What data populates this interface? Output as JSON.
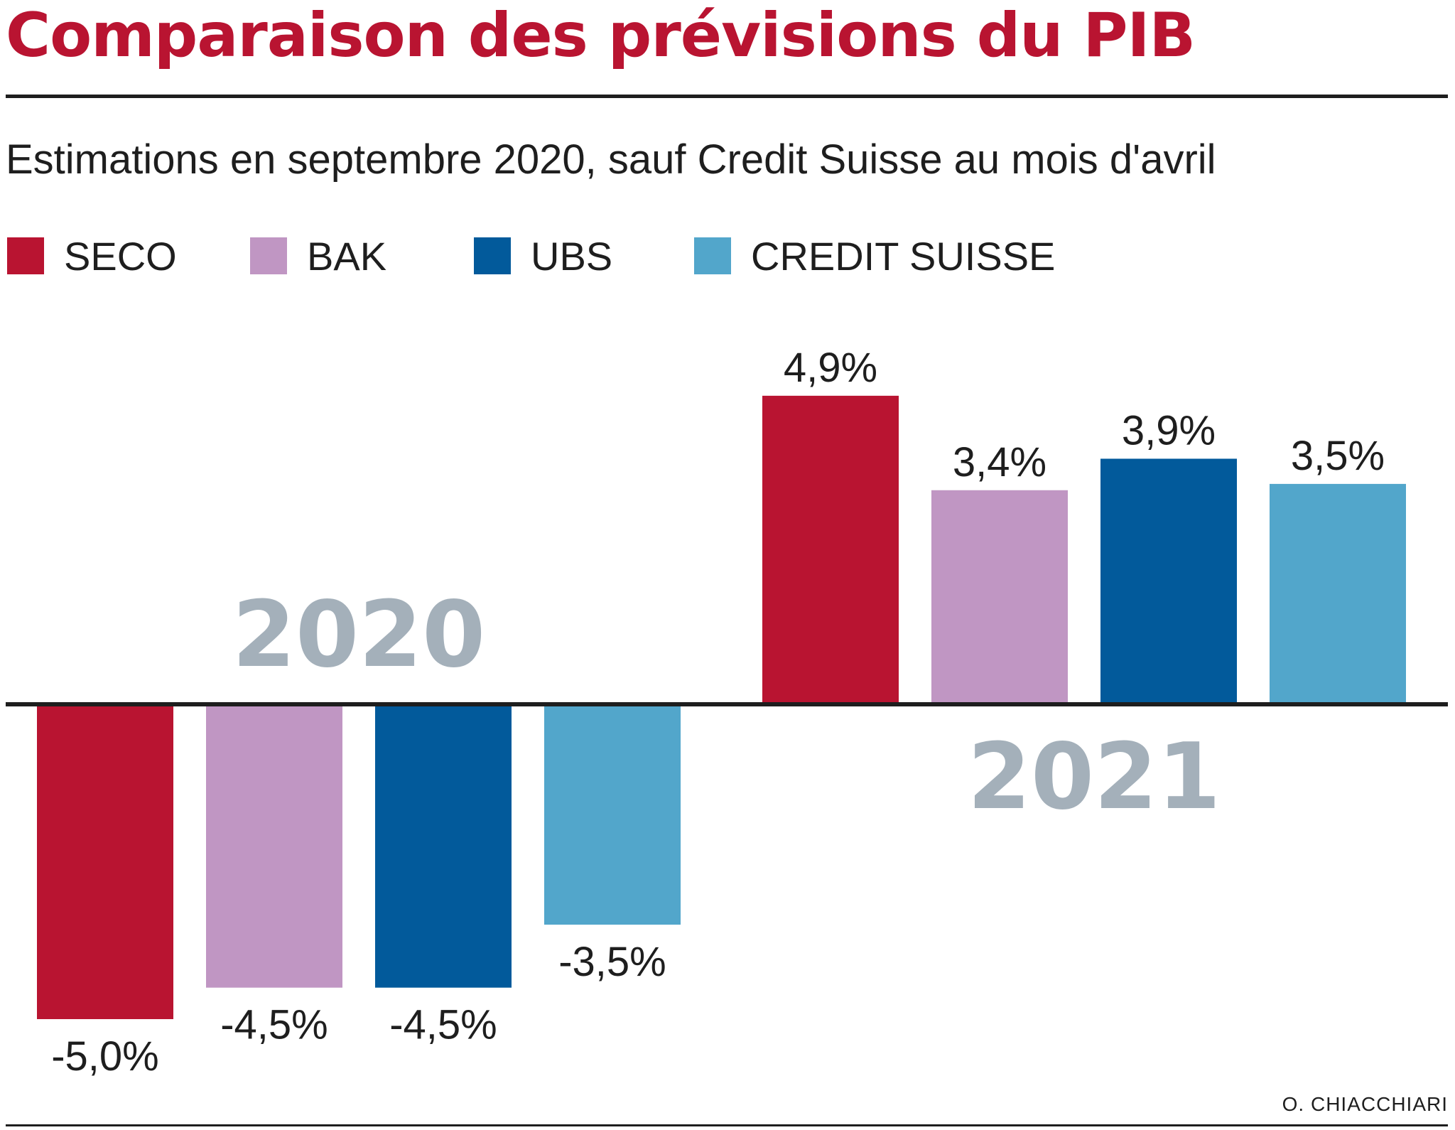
{
  "header": {
    "title": "Comparaison des prévisions du PIB",
    "subtitle": "Estimations en septembre 2020, sauf Credit Suisse au mois d'avril"
  },
  "legend": [
    {
      "label": "SECO",
      "color": "#b91431"
    },
    {
      "label": "BAK",
      "color": "#c096c3"
    },
    {
      "label": "UBS",
      "color": "#025a9b"
    },
    {
      "label": "CREDIT SUISSE",
      "color": "#52a6cb"
    }
  ],
  "chart_data": {
    "type": "bar",
    "categories": [
      "2020",
      "2021"
    ],
    "series": [
      {
        "name": "SECO",
        "values": [
          -5.0,
          4.9
        ],
        "labels": [
          "-5,0%",
          "4,9%"
        ],
        "color": "#b91431"
      },
      {
        "name": "BAK",
        "values": [
          -4.5,
          3.4
        ],
        "labels": [
          "-4,5%",
          "3,4%"
        ],
        "color": "#c096c3"
      },
      {
        "name": "UBS",
        "values": [
          -4.5,
          3.9
        ],
        "labels": [
          "-4,5%",
          "3,9%"
        ],
        "color": "#025a9b"
      },
      {
        "name": "CREDIT SUISSE",
        "values": [
          -3.5,
          3.5
        ],
        "labels": [
          "-3,5%",
          "3,5%"
        ],
        "color": "#52a6cb"
      }
    ],
    "title": "Comparaison des prévisions du PIB",
    "xlabel": "",
    "ylabel": "",
    "ylim": [
      -5.0,
      4.9
    ],
    "category_label_color": "#a4b0ba",
    "baseline_color": "#1e1e1e"
  },
  "footer": {
    "credit": "O. CHIACCHIARI"
  }
}
